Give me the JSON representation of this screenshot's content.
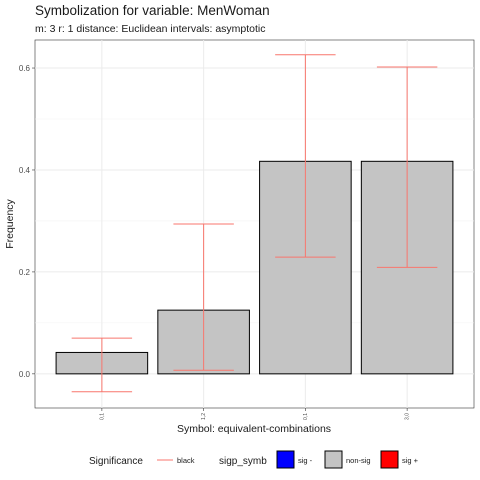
{
  "chart_data": {
    "type": "bar",
    "title": "Symbolization for variable: MenWoman",
    "subtitle": "m: 3  r:  1  distance:  Euclidean  intervals:  asymptotic",
    "xlabel": "Symbol: equivalent-combinations",
    "ylabel": "Frequency",
    "categories": [
      "0,1",
      "1,2",
      "0,1",
      "3,0"
    ],
    "values": [
      0.042,
      0.125,
      0.417,
      0.417
    ],
    "error_low": [
      -0.035,
      0.007,
      0.229,
      0.209
    ],
    "error_high": [
      0.07,
      0.294,
      0.626,
      0.602
    ],
    "ylim": [
      -0.067,
      0.655
    ],
    "yticks": [
      0.0,
      0.2,
      0.4,
      0.6
    ],
    "ytick_labels": [
      "0.0",
      "0.2",
      "0.4",
      "0.6"
    ],
    "grid": true,
    "bar_color": "#c4c4c4",
    "error_color": "#f8766d",
    "legend_position": "bottom",
    "legend": {
      "significance_title": "Significance",
      "significance_entry": "black",
      "sigp_title": "sigp_symb",
      "sigp_entries": [
        {
          "label": "sig -",
          "color": "#0000ff"
        },
        {
          "label": "non-sig",
          "color": "#c4c4c4"
        },
        {
          "label": "sig +",
          "color": "#ff0000"
        }
      ]
    }
  }
}
